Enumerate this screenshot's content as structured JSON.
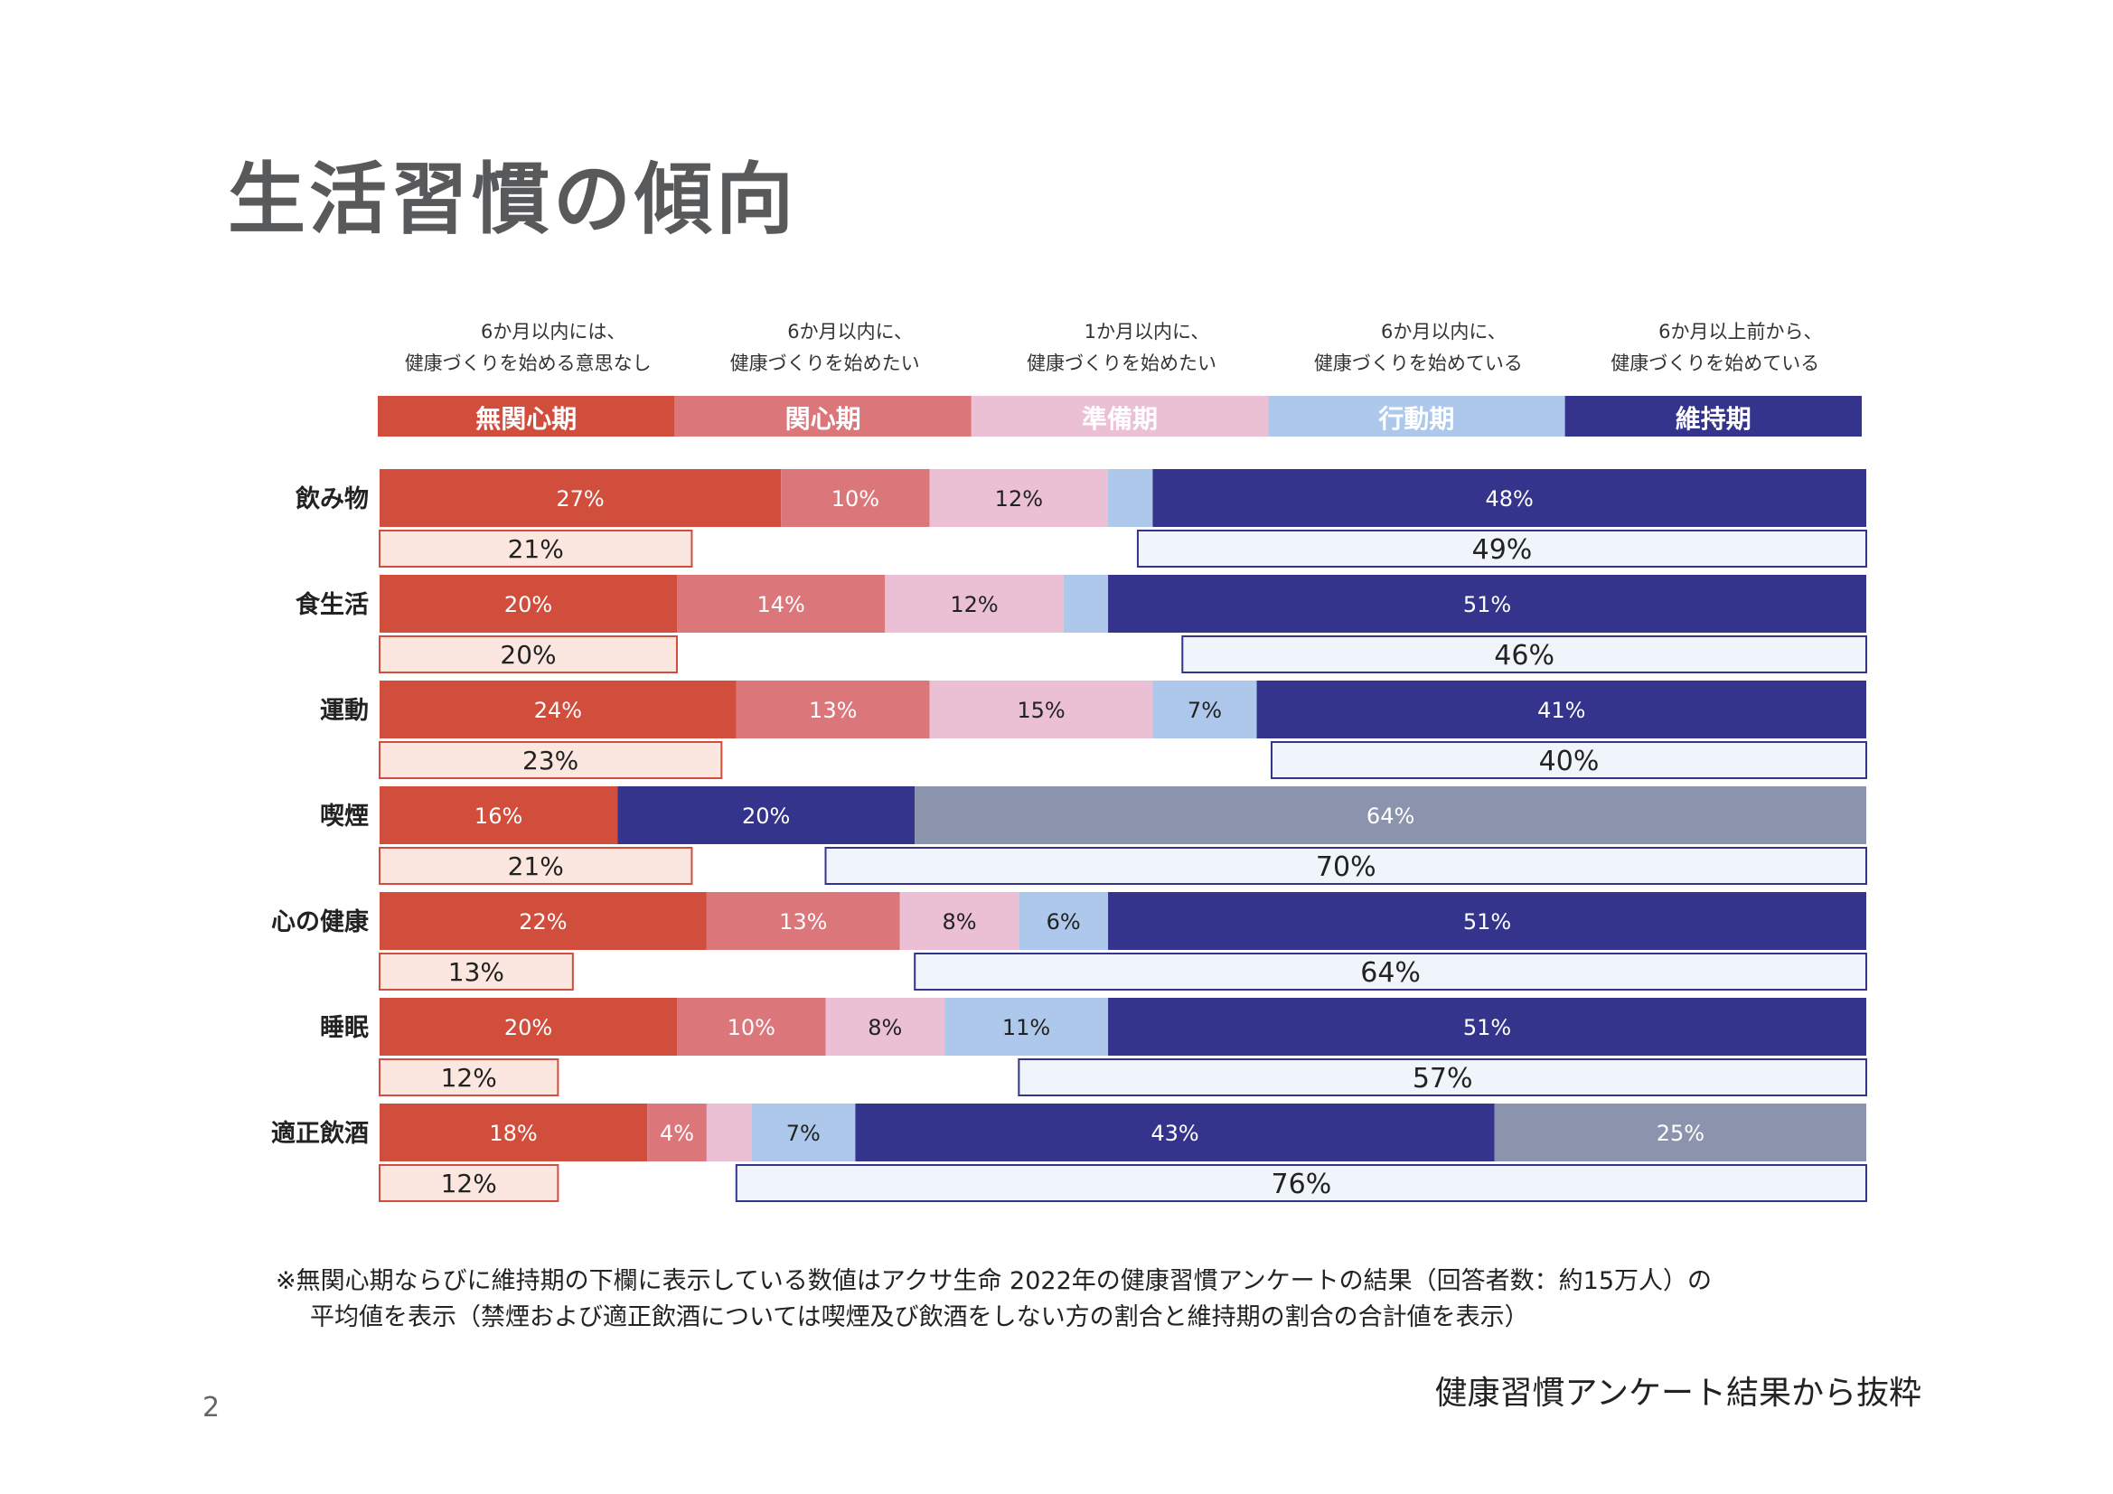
{
  "page": {
    "title": "生活習慣の傾向",
    "footnote_line1": "※無関心期ならびに維持期の下欄に表示している数値はアクサ生命 2022年の健康習慣アンケートの結果（回答者数：約15万人）の",
    "footnote_line2": "平均値を表示（禁煙および適正飲酒については喫煙及び飲酒をしない方の割合と維持期の割合の合計値を表示）",
    "source": "健康習慣アンケート結果から抜粋",
    "page_number": "2"
  },
  "chart_data": {
    "type": "bar",
    "orientation": "horizontal",
    "stacked": true,
    "title": "",
    "xlabel": "",
    "ylabel": "",
    "xlim": [
      0,
      100
    ],
    "stages": [
      {
        "key": "mukanshin",
        "name": "無関心期",
        "desc_line1": "6か月以内には、",
        "desc_line2": "健康づくりを始める意思なし",
        "color": "#d14e3c"
      },
      {
        "key": "kanshin",
        "name": "関心期",
        "desc_line1": "6か月以内に、",
        "desc_line2": "健康づくりを始めたい",
        "color": "#db767b"
      },
      {
        "key": "junbi",
        "name": "準備期",
        "desc_line1": "1か月以内に、",
        "desc_line2": "健康づくりを始めたい",
        "color": "#ebc0d4"
      },
      {
        "key": "kodo",
        "name": "行動期",
        "desc_line1": "6か月以内に、",
        "desc_line2": "健康づくりを始めている",
        "color": "#adc8ea"
      },
      {
        "key": "iji",
        "name": "維持期",
        "desc_line1": "6か月以上前から、",
        "desc_line2": "健康づくりを始めている",
        "color": "#34348c"
      }
    ],
    "categories": [
      "飲み物",
      "食生活",
      "運動",
      "喫煙",
      "心の健康",
      "睡眠",
      "適正飲酒"
    ],
    "rows": [
      {
        "category": "飲み物",
        "segments": [
          {
            "stage": "mukanshin",
            "value": 27,
            "label": "27%"
          },
          {
            "stage": "kanshin",
            "value": 10,
            "label": "10%"
          },
          {
            "stage": "junbi",
            "value": 12,
            "label": "12%"
          },
          {
            "stage": "kodo",
            "value": 3,
            "label": ""
          },
          {
            "stage": "iji",
            "value": 48,
            "label": "48%"
          }
        ],
        "avg_mukanshin": {
          "value": 21,
          "label": "21%"
        },
        "avg_iji": {
          "value": 49,
          "label": "49%"
        }
      },
      {
        "category": "食生活",
        "segments": [
          {
            "stage": "mukanshin",
            "value": 20,
            "label": "20%"
          },
          {
            "stage": "kanshin",
            "value": 14,
            "label": "14%"
          },
          {
            "stage": "junbi",
            "value": 12,
            "label": "12%"
          },
          {
            "stage": "kodo",
            "value": 3,
            "label": ""
          },
          {
            "stage": "iji",
            "value": 51,
            "label": "51%"
          }
        ],
        "avg_mukanshin": {
          "value": 20,
          "label": "20%"
        },
        "avg_iji": {
          "value": 46,
          "label": "46%"
        }
      },
      {
        "category": "運動",
        "segments": [
          {
            "stage": "mukanshin",
            "value": 24,
            "label": "24%"
          },
          {
            "stage": "kanshin",
            "value": 13,
            "label": "13%"
          },
          {
            "stage": "junbi",
            "value": 15,
            "label": "15%"
          },
          {
            "stage": "kodo",
            "value": 7,
            "label": "7%"
          },
          {
            "stage": "iji",
            "value": 41,
            "label": "41%"
          }
        ],
        "avg_mukanshin": {
          "value": 23,
          "label": "23%"
        },
        "avg_iji": {
          "value": 40,
          "label": "40%"
        }
      },
      {
        "category": "喫煙",
        "segments": [
          {
            "stage": "mukanshin",
            "value": 16,
            "label": "16%"
          },
          {
            "stage": "iji",
            "value": 20,
            "label": "20%"
          },
          {
            "stage": "other",
            "value": 64,
            "label": "64%"
          }
        ],
        "avg_mukanshin": {
          "value": 21,
          "label": "21%"
        },
        "avg_iji": {
          "value": 70,
          "label": "70%"
        }
      },
      {
        "category": "心の健康",
        "segments": [
          {
            "stage": "mukanshin",
            "value": 22,
            "label": "22%"
          },
          {
            "stage": "kanshin",
            "value": 13,
            "label": "13%"
          },
          {
            "stage": "junbi",
            "value": 8,
            "label": "8%"
          },
          {
            "stage": "kodo",
            "value": 6,
            "label": "6%"
          },
          {
            "stage": "iji",
            "value": 51,
            "label": "51%"
          }
        ],
        "avg_mukanshin": {
          "value": 13,
          "label": "13%"
        },
        "avg_iji": {
          "value": 64,
          "label": "64%"
        }
      },
      {
        "category": "睡眠",
        "segments": [
          {
            "stage": "mukanshin",
            "value": 20,
            "label": "20%"
          },
          {
            "stage": "kanshin",
            "value": 10,
            "label": "10%"
          },
          {
            "stage": "junbi",
            "value": 8,
            "label": "8%"
          },
          {
            "stage": "kodo",
            "value": 11,
            "label": "11%"
          },
          {
            "stage": "iji",
            "value": 51,
            "label": "51%"
          }
        ],
        "avg_mukanshin": {
          "value": 12,
          "label": "12%"
        },
        "avg_iji": {
          "value": 57,
          "label": "57%"
        }
      },
      {
        "category": "適正飲酒",
        "segments": [
          {
            "stage": "mukanshin",
            "value": 18,
            "label": "18%"
          },
          {
            "stage": "kanshin",
            "value": 4,
            "label": "4%"
          },
          {
            "stage": "junbi",
            "value": 3,
            "label": ""
          },
          {
            "stage": "kodo",
            "value": 7,
            "label": "7%"
          },
          {
            "stage": "iji",
            "value": 43,
            "label": "43%"
          },
          {
            "stage": "other",
            "value": 25,
            "label": "25%"
          }
        ],
        "avg_mukanshin": {
          "value": 12,
          "label": "12%"
        },
        "avg_iji": {
          "value": 76,
          "label": "76%"
        }
      }
    ],
    "colors": {
      "other": "#8c93ad",
      "avg_mukanshin_fill": "#fbe7e0",
      "avg_mukanshin_border": "#d14e3c",
      "avg_iji_fill": "#eff5fa",
      "avg_iji_border": "#34348c"
    }
  }
}
